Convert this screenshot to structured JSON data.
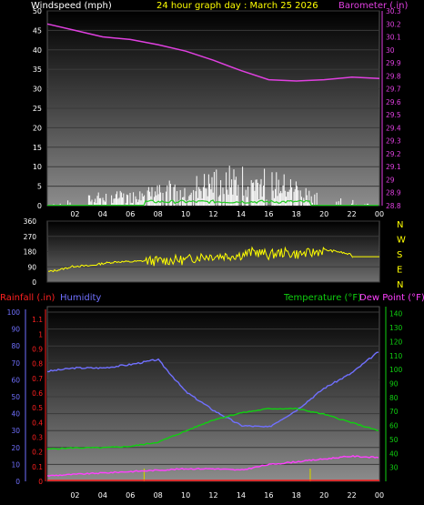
{
  "header": {
    "left_label": "Windspeed (mph)",
    "title": "24 hour graph day : March 25 2026",
    "right_label": "Barometer (.in)"
  },
  "colors": {
    "windspeed": "#ffffff",
    "gust": "#22cc22",
    "barometer": "#e040e0",
    "direction": "#ffff00",
    "rainfall": "#ff2020",
    "humidity": "#7070ff",
    "temperature": "#10d010",
    "dewpoint": "#ff40ff",
    "axis_left_top": "#ffffff",
    "axis_baro": "#e040e0",
    "axis_rain": "#ff2020",
    "axis_hum": "#7070ff",
    "axis_temp": "#10d010",
    "rain_ticks": "#cccc00"
  },
  "x_axis": {
    "ticks": [
      "02",
      "04",
      "06",
      "08",
      "10",
      "12",
      "14",
      "16",
      "18",
      "20",
      "22",
      "00"
    ]
  },
  "wind_panel": {
    "y_ticks": [
      "0",
      "5",
      "10",
      "15",
      "20",
      "25",
      "30",
      "35",
      "40",
      "45",
      "50"
    ],
    "baro_ticks": [
      "28.8",
      "28.9",
      "29",
      "29.1",
      "29.2",
      "29.3",
      "29.4",
      "29.5",
      "29.6",
      "29.7",
      "29.8",
      "29.9",
      "30",
      "30.1",
      "30.2",
      "30.3"
    ]
  },
  "dir_panel": {
    "y_ticks": [
      "0",
      "90",
      "180",
      "270",
      "360"
    ],
    "compass": [
      "N",
      "W",
      "S",
      "E",
      "N"
    ]
  },
  "bottom_panel": {
    "rain_label": "Rainfall (.in)",
    "humidity_label": "Humidity",
    "temp_label": "Temperature (°F)",
    "dew_label": "Dew Point (°F)",
    "hum_ticks": [
      "0",
      "10",
      "20",
      "30",
      "40",
      "50",
      "60",
      "70",
      "80",
      "90",
      "100"
    ],
    "rain_ticks": [
      "0",
      "0.1",
      "0.2",
      "0.3",
      "0.4",
      "0.5",
      "0.6",
      "0.7",
      "0.8",
      "0.9",
      "1",
      "1.1"
    ],
    "temp_ticks": [
      "30",
      "40",
      "50",
      "60",
      "70",
      "80",
      "90",
      "100",
      "110",
      "120",
      "130",
      "140"
    ]
  },
  "chart_data": [
    {
      "type": "line",
      "title": "24 hour graph day : March 25 2026",
      "xlabel": "",
      "ylabel": "Windspeed (mph)",
      "y2label": "Barometer (.in)",
      "ylim": [
        0,
        50
      ],
      "y2lim": [
        28.8,
        30.3
      ],
      "x": [
        0,
        2,
        4,
        6,
        8,
        10,
        12,
        14,
        16,
        18,
        20,
        22,
        24
      ],
      "series": [
        {
          "name": "Barometer (.in)",
          "axis": "right",
          "values": [
            30.2,
            30.15,
            30.1,
            30.08,
            30.04,
            29.99,
            29.92,
            29.84,
            29.77,
            29.76,
            29.77,
            29.79,
            29.78
          ]
        },
        {
          "name": "Windspeed (mph)",
          "axis": "left",
          "values": [
            0,
            1,
            2,
            2,
            3,
            4,
            5,
            6,
            5,
            4,
            1,
            1,
            0
          ]
        }
      ]
    },
    {
      "type": "line",
      "ylabel": "",
      "ylim": [
        0,
        360
      ],
      "x": [
        0,
        1,
        2,
        3,
        4,
        5,
        6,
        7,
        8,
        9,
        10,
        11,
        12,
        13,
        14,
        15,
        16,
        17,
        18,
        19,
        20,
        21,
        22,
        23,
        24
      ],
      "series": [
        {
          "name": "",
          "values": [
            60,
            75,
            95,
            95,
            110,
            120,
            120,
            125,
            125,
            130,
            130,
            150,
            155,
            155,
            160,
            180,
            160,
            175,
            165,
            170,
            190,
            180,
            160,
            155,
            150
          ]
        }
      ]
    },
    {
      "type": "line",
      "ylabel": "Humidity",
      "y2label": "Temperature (°F)",
      "ylim": [
        0,
        100
      ],
      "y2lim": [
        20,
        145
      ],
      "rain_ylim": [
        0,
        1.15
      ],
      "x": [
        0,
        2,
        4,
        6,
        8,
        10,
        12,
        14,
        16,
        18,
        20,
        22,
        24
      ],
      "series": [
        {
          "name": "Humidity",
          "axis": "humidity",
          "values": [
            65,
            67,
            67,
            69,
            72,
            53,
            42,
            33,
            32,
            42,
            55,
            64,
            77
          ]
        },
        {
          "name": "Temperature (°F)",
          "axis": "temp",
          "values": [
            43,
            44,
            44,
            45,
            48,
            56,
            64,
            69,
            72,
            72,
            68,
            62,
            56
          ]
        },
        {
          "name": "Dew Point (°F)",
          "axis": "temp",
          "values": [
            24,
            25,
            26,
            27,
            28,
            29,
            29,
            28,
            32,
            34,
            36,
            38,
            37
          ]
        },
        {
          "name": "Rainfall (.in)",
          "axis": "rain",
          "values": [
            0,
            0,
            0,
            0,
            0,
            0,
            0,
            0,
            0,
            0,
            0,
            0,
            0
          ]
        }
      ]
    }
  ]
}
